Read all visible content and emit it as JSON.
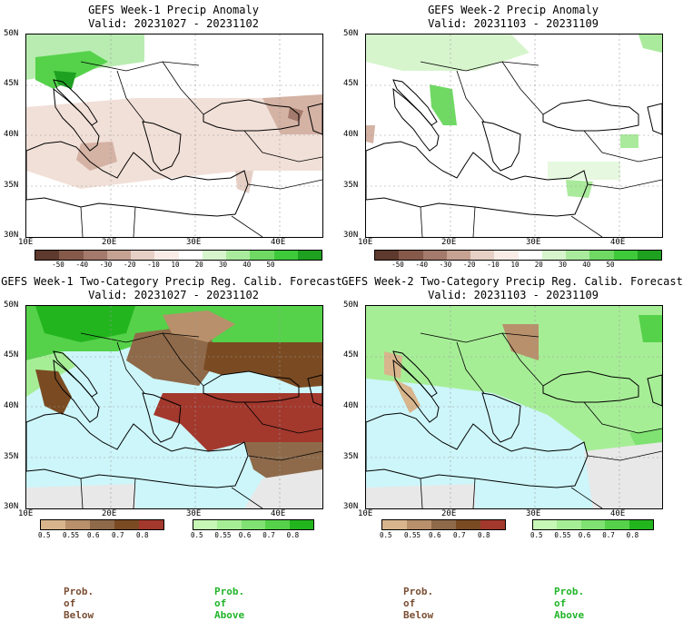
{
  "colors": {
    "sea": "#cdf6fa",
    "below": "#7a4e33",
    "above": "#2fc737",
    "legend_below_text": "#7a4e33",
    "legend_above_text": "#21b52a"
  },
  "panels": [
    {
      "title": "GEFS Week-1 Precip Anomaly",
      "valid": "Valid: 20231027 - 20231102",
      "lat_labels": [
        "50N",
        "45N",
        "40N",
        "35N",
        "30N"
      ],
      "lon_labels": [
        "10E",
        "20E",
        "30E",
        "40E"
      ],
      "colorbar_labels": [
        "-50",
        "-40",
        "-30",
        "-20",
        "-10",
        "10",
        "20",
        "30",
        "40",
        "50"
      ],
      "colorbar_colors": [
        "#5d3a2d",
        "#855a4a",
        "#a37a6b",
        "#c6a293",
        "#e6d0c6",
        "#f9ece6",
        "#ffffff",
        "#d7f5cd",
        "#aaea9c",
        "#6fd964",
        "#3ec93b",
        "#1ea021"
      ]
    },
    {
      "title": "GEFS Week-2 Precip Anomaly",
      "valid": "Valid: 20231103 - 20231109",
      "lat_labels": [
        "50N",
        "45N",
        "40N",
        "35N",
        "30N"
      ],
      "lon_labels": [
        "10E",
        "20E",
        "30E",
        "40E"
      ],
      "colorbar_labels": [
        "-50",
        "-40",
        "-30",
        "-20",
        "-10",
        "10",
        "20",
        "30",
        "40",
        "50"
      ],
      "colorbar_colors": [
        "#5d3a2d",
        "#855a4a",
        "#a37a6b",
        "#c6a293",
        "#e6d0c6",
        "#f9ece6",
        "#ffffff",
        "#d7f5cd",
        "#aaea9c",
        "#6fd964",
        "#3ec93b",
        "#1ea021"
      ]
    },
    {
      "title": "GEFS Week-1 Two-Category Precip Reg. Calib. Forecast",
      "valid": "Valid: 20231027 - 20231102",
      "lat_labels": [
        "50N",
        "45N",
        "40N",
        "35N",
        "30N"
      ],
      "lon_labels": [
        "10E",
        "20E",
        "30E",
        "40E"
      ],
      "below_labels": [
        "0.5",
        "0.55",
        "0.6",
        "0.7",
        "0.8"
      ],
      "above_labels": [
        "0.5",
        "0.55",
        "0.6",
        "0.7",
        "0.8"
      ],
      "below_colors": [
        "#d8b58c",
        "#b8906b",
        "#8e6a4a",
        "#7a4b22",
        "#a3382d"
      ],
      "above_colors": [
        "#c6f7b6",
        "#a6ee96",
        "#7fe272",
        "#55d24a",
        "#23b51e"
      ],
      "below_text": "Prob. of Below",
      "above_text": "Prob. of Above"
    },
    {
      "title": "GEFS Week-2 Two-Category Precip Reg. Calib. Forecast",
      "valid": "Valid: 20231103 - 20231109",
      "lat_labels": [
        "50N",
        "45N",
        "40N",
        "35N",
        "30N"
      ],
      "lon_labels": [
        "10E",
        "20E",
        "30E",
        "40E"
      ],
      "below_labels": [
        "0.5",
        "0.55",
        "0.6",
        "0.7",
        "0.8"
      ],
      "above_labels": [
        "0.5",
        "0.55",
        "0.6",
        "0.7",
        "0.8"
      ],
      "below_colors": [
        "#d8b58c",
        "#b8906b",
        "#8e6a4a",
        "#7a4b22",
        "#a3382d"
      ],
      "above_colors": [
        "#c6f7b6",
        "#a6ee96",
        "#7fe272",
        "#55d24a",
        "#23b51e"
      ],
      "below_text": "Prob. of Below",
      "above_text": "Prob. of Above"
    }
  ]
}
